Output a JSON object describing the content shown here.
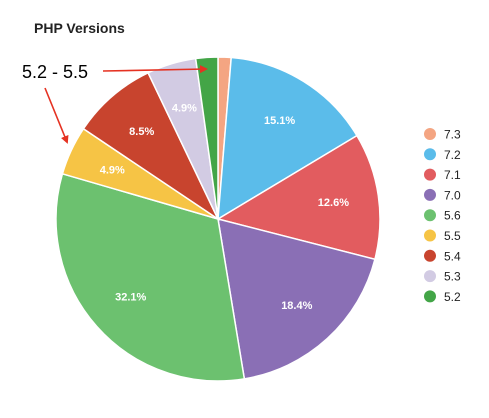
{
  "chart_data": {
    "type": "pie",
    "title": "PHP Versions",
    "legend_position": "right",
    "slices": [
      {
        "label": "7.3",
        "value": 1.3,
        "color": "#f4a582",
        "value_label": ""
      },
      {
        "label": "7.2",
        "value": 15.1,
        "color": "#5bbcea",
        "value_label": "15.1%"
      },
      {
        "label": "7.1",
        "value": 12.6,
        "color": "#e25c5f",
        "value_label": "12.6%"
      },
      {
        "label": "7.0",
        "value": 18.4,
        "color": "#8a6fb5",
        "value_label": "18.4%"
      },
      {
        "label": "5.6",
        "value": 32.1,
        "color": "#6cc16f",
        "value_label": "32.1%"
      },
      {
        "label": "5.5",
        "value": 4.9,
        "color": "#f6c445",
        "value_label": "4.9%"
      },
      {
        "label": "5.4",
        "value": 8.5,
        "color": "#c8442e",
        "value_label": "8.5%"
      },
      {
        "label": "5.3",
        "value": 4.9,
        "color": "#d2cbe3",
        "value_label": "4.9%"
      },
      {
        "label": "5.2",
        "value": 2.2,
        "color": "#43a547",
        "value_label": ""
      }
    ],
    "annotation": {
      "text": "5.2 - 5.5",
      "arrow_color": "#e53222"
    }
  }
}
